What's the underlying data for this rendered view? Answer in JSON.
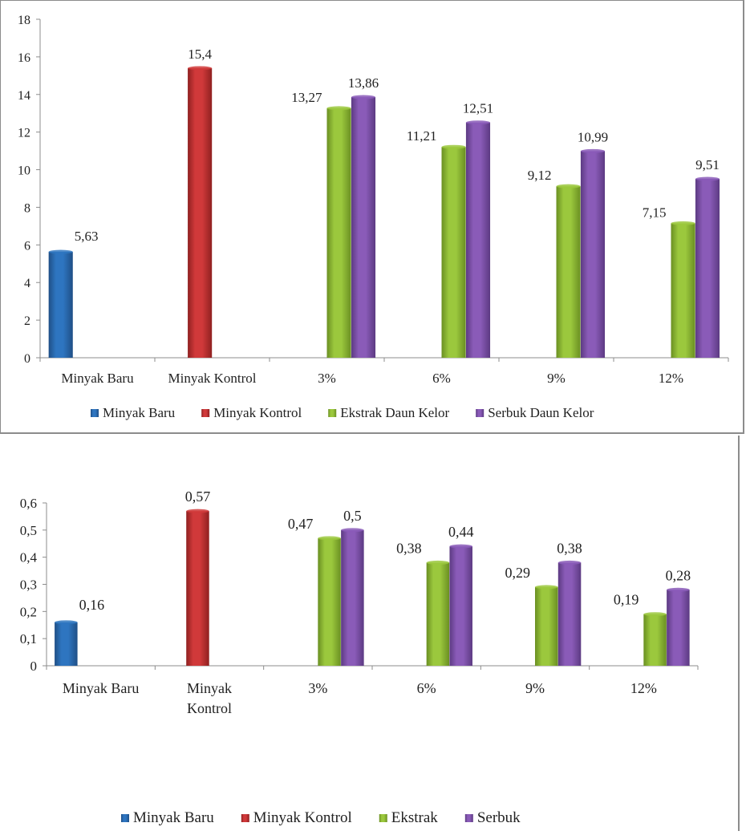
{
  "charts": [
    {
      "type": "bar",
      "categories": [
        "Minyak Baru",
        "Minyak Kontrol",
        "3%",
        "6%",
        "9%",
        "12%"
      ],
      "series": [
        {
          "name": "Minyak Baru",
          "values": [
            5.63,
            null,
            null,
            null,
            null,
            null
          ],
          "labels": [
            "5,63",
            "",
            "",
            "",
            "",
            ""
          ],
          "color": "#2e75c0",
          "dark": "#1f4f86"
        },
        {
          "name": "Minyak Kontrol",
          "values": [
            null,
            15.4,
            null,
            null,
            null,
            null
          ],
          "labels": [
            "",
            "15,4",
            "",
            "",
            "",
            ""
          ],
          "color": "#d0393a",
          "dark": "#8f2020"
        },
        {
          "name": "Ekstrak Daun Kelor",
          "values": [
            null,
            null,
            13.27,
            11.21,
            9.12,
            7.15
          ],
          "labels": [
            "",
            "",
            "13,27",
            "11,21",
            "9,12",
            "7,15"
          ],
          "color": "#9bc83d",
          "dark": "#6a8f22"
        },
        {
          "name": "Serbuk Daun Kelor",
          "values": [
            null,
            null,
            13.86,
            12.51,
            10.99,
            9.51
          ],
          "labels": [
            "",
            "",
            "13,86",
            "12,51",
            "10,99",
            "9,51"
          ],
          "color": "#8a5bb8",
          "dark": "#5c3a82"
        }
      ],
      "ylim": [
        0,
        18
      ],
      "yticks": [
        0,
        2,
        4,
        6,
        8,
        10,
        12,
        14,
        16,
        18
      ],
      "ytick_labels": [
        "0",
        "2",
        "4",
        "6",
        "8",
        "10",
        "12",
        "14",
        "16",
        "18"
      ],
      "legend": [
        "Minyak Baru",
        "Minyak Kontrol",
        "Ekstrak Daun Kelor",
        "Serbuk Daun Kelor"
      ],
      "legend_position": "bottom"
    },
    {
      "type": "bar",
      "categories": [
        "Minyak Baru",
        "Minyak Kontrol",
        "3%",
        "6%",
        "9%",
        "12%"
      ],
      "category_lines": [
        [
          "Minyak Baru"
        ],
        [
          "Minyak",
          "Kontrol"
        ],
        [
          "3%"
        ],
        [
          "6%"
        ],
        [
          "9%"
        ],
        [
          "12%"
        ]
      ],
      "series": [
        {
          "name": "Minyak Baru",
          "values": [
            0.16,
            null,
            null,
            null,
            null,
            null
          ],
          "labels": [
            "0,16",
            "",
            "",
            "",
            "",
            ""
          ],
          "color": "#2e75c0",
          "dark": "#1f4f86"
        },
        {
          "name": "Minyak Kontrol",
          "values": [
            null,
            0.57,
            null,
            null,
            null,
            null
          ],
          "labels": [
            "",
            "0,57",
            "",
            "",
            "",
            ""
          ],
          "color": "#d0393a",
          "dark": "#8f2020"
        },
        {
          "name": "Ekstrak",
          "values": [
            null,
            null,
            0.47,
            0.38,
            0.29,
            0.19
          ],
          "labels": [
            "",
            "",
            "0,47",
            "0,38",
            "0,29",
            "0,19"
          ],
          "color": "#9bc83d",
          "dark": "#6a8f22"
        },
        {
          "name": "Serbuk",
          "values": [
            null,
            null,
            0.5,
            0.44,
            0.38,
            0.28
          ],
          "labels": [
            "",
            "",
            "0,5",
            "0,44",
            "0,38",
            "0,28"
          ],
          "color": "#8a5bb8",
          "dark": "#5c3a82"
        }
      ],
      "ylim": [
        0,
        0.6
      ],
      "yticks": [
        0,
        0.1,
        0.2,
        0.3,
        0.4,
        0.5,
        0.6
      ],
      "ytick_labels": [
        "0",
        "0,1",
        "0,2",
        "0,3",
        "0,4",
        "0,5",
        "0,6"
      ],
      "legend": [
        "Minyak Baru",
        "Minyak Kontrol",
        "Ekstrak",
        "Serbuk"
      ],
      "legend_position": "bottom"
    }
  ]
}
